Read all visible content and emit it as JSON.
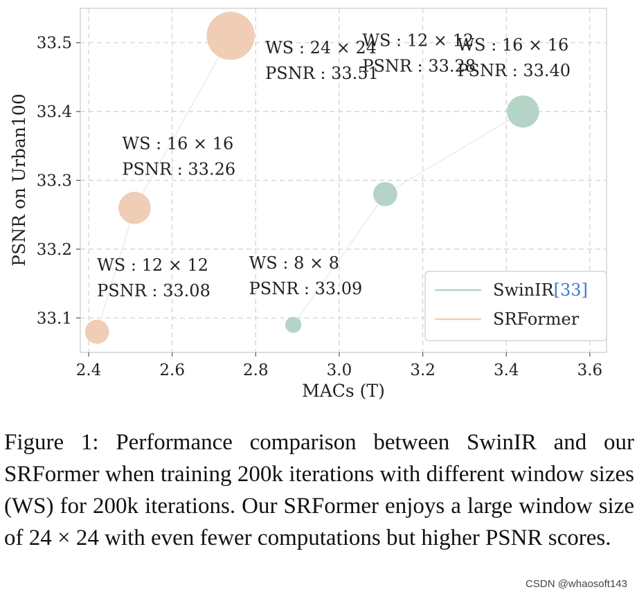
{
  "chart_data": {
    "type": "scatter",
    "xlabel": "MACs (T)",
    "ylabel": "PSNR on Urban100",
    "xlim": [
      2.38,
      3.64
    ],
    "ylim": [
      33.05,
      33.55
    ],
    "xticks": [
      "2.4",
      "2.6",
      "2.8",
      "3.0",
      "3.2",
      "3.4",
      "3.6"
    ],
    "yticks": [
      "33.1",
      "33.2",
      "33.3",
      "33.4",
      "33.5"
    ],
    "grid": true,
    "legend_position": "bottom-right",
    "series": [
      {
        "name": "SwinIR",
        "ref": "[33]",
        "color": "#b5d3c6",
        "points": [
          {
            "x": 2.89,
            "y": 33.09,
            "ws": "WS : 8 × 8",
            "psnr": "PSNR : 33.09",
            "size": 8
          },
          {
            "x": 3.11,
            "y": 33.28,
            "ws": "WS : 12 × 12",
            "psnr": "PSNR : 33.28",
            "size": 12
          },
          {
            "x": 3.44,
            "y": 33.4,
            "ws": "WS : 16 × 16",
            "psnr": "PSNR : 33.40",
            "size": 16
          }
        ]
      },
      {
        "name": "SRFormer",
        "ref": "",
        "color": "#f0cdb5",
        "points": [
          {
            "x": 2.42,
            "y": 33.08,
            "ws": "WS : 12 × 12",
            "psnr": "PSNR : 33.08",
            "size": 12
          },
          {
            "x": 2.51,
            "y": 33.26,
            "ws": "WS : 16 × 16",
            "psnr": "PSNR : 33.26",
            "size": 16
          },
          {
            "x": 2.74,
            "y": 33.51,
            "ws": "WS : 24 × 24",
            "psnr": "PSNR : 33.51",
            "size": 24
          }
        ]
      }
    ]
  },
  "caption": "Figure 1: Performance comparison between SwinIR and our SRFormer when training 200k iterations with different window sizes (WS) for 200k iterations. Our SRFormer enjoys a large window size of 24 × 24 with even fewer computations but higher PSNR scores.",
  "watermark": "CSDN @whaosoft143"
}
